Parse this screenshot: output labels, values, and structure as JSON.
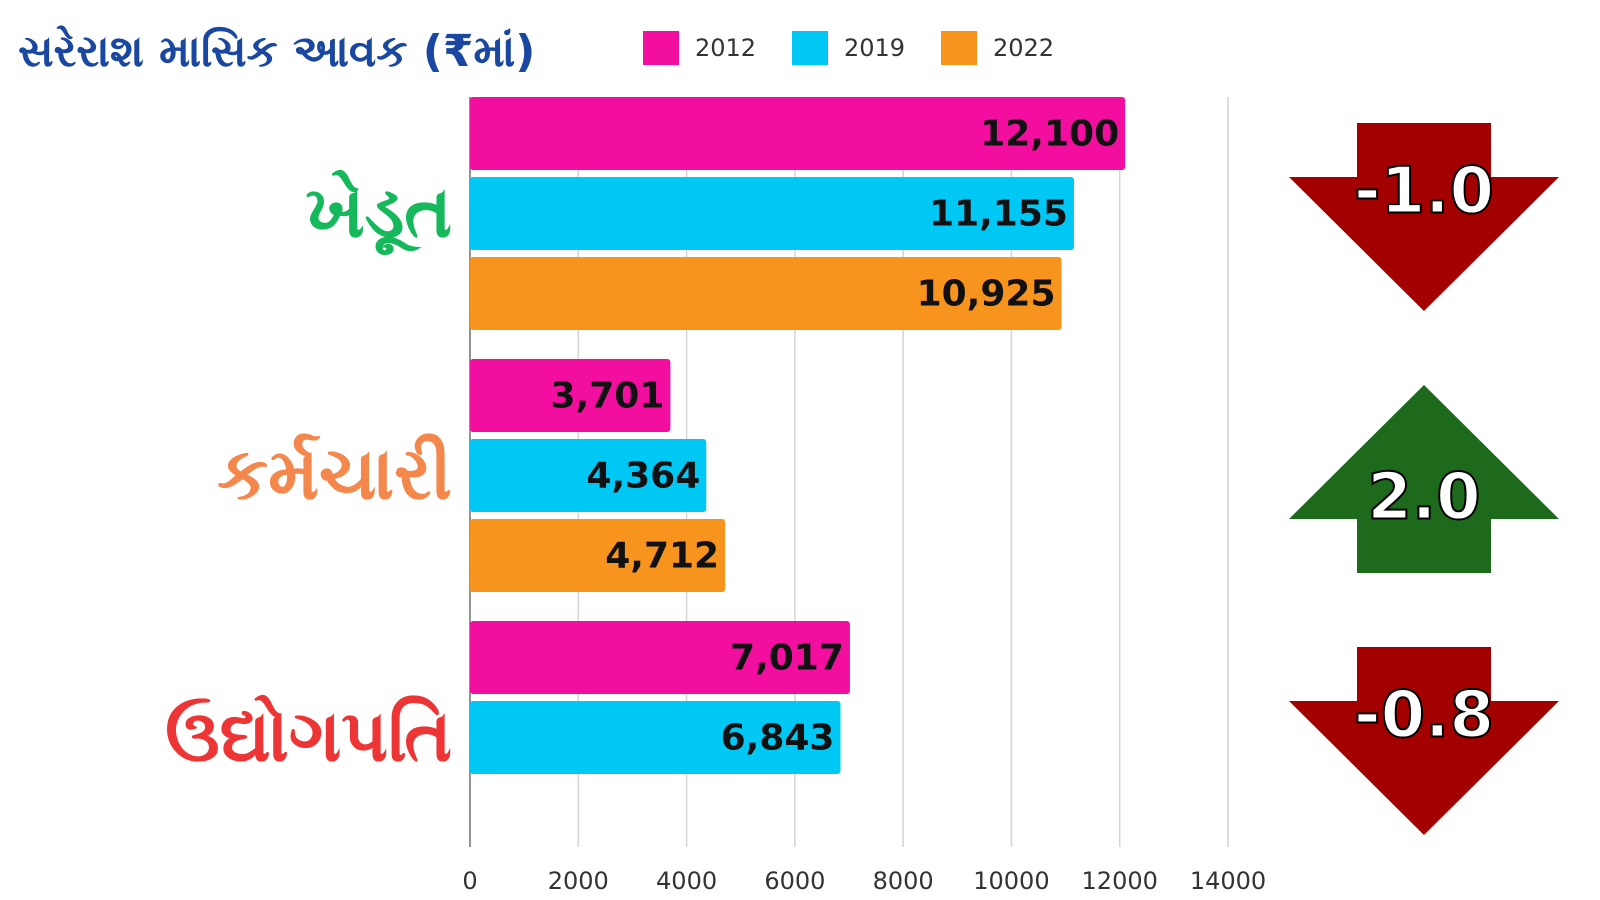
{
  "chart_data": {
    "type": "bar",
    "orientation": "horizontal",
    "title": "સરેરાશ માસિક આવક (₹માં)",
    "title_color": "#1a47a0",
    "categories": [
      "ખેડૂત",
      "કર્મચારી",
      "ઉદ્યોગપતિ"
    ],
    "category_colors": [
      "#15b85a",
      "#f4874b",
      "#ee3535"
    ],
    "series": [
      {
        "name": "2012",
        "color": "#f20fa0",
        "values": [
          12100,
          3701,
          7017
        ],
        "value_labels": [
          "12,100",
          "3,701",
          "7,017"
        ]
      },
      {
        "name": "2019",
        "color": "#00c8f5",
        "values": [
          11155,
          4364,
          6843
        ],
        "value_labels": [
          "11,155",
          "4,364",
          "6,843"
        ]
      },
      {
        "name": "2022",
        "color": "#f7941d",
        "values": [
          10925,
          4712,
          null
        ],
        "value_labels": [
          "10,925",
          "4,712",
          null
        ]
      }
    ],
    "xlim": [
      0,
      14000
    ],
    "xticks": [
      0,
      2000,
      4000,
      6000,
      8000,
      10000,
      12000,
      14000
    ],
    "grid": true,
    "annotations": [
      {
        "text": "-1.0",
        "direction": "down",
        "color": "#a30000"
      },
      {
        "text": "2.0",
        "direction": "up",
        "color": "#1d6a1d"
      },
      {
        "text": "-0.8",
        "direction": "down",
        "color": "#a30000"
      }
    ]
  }
}
